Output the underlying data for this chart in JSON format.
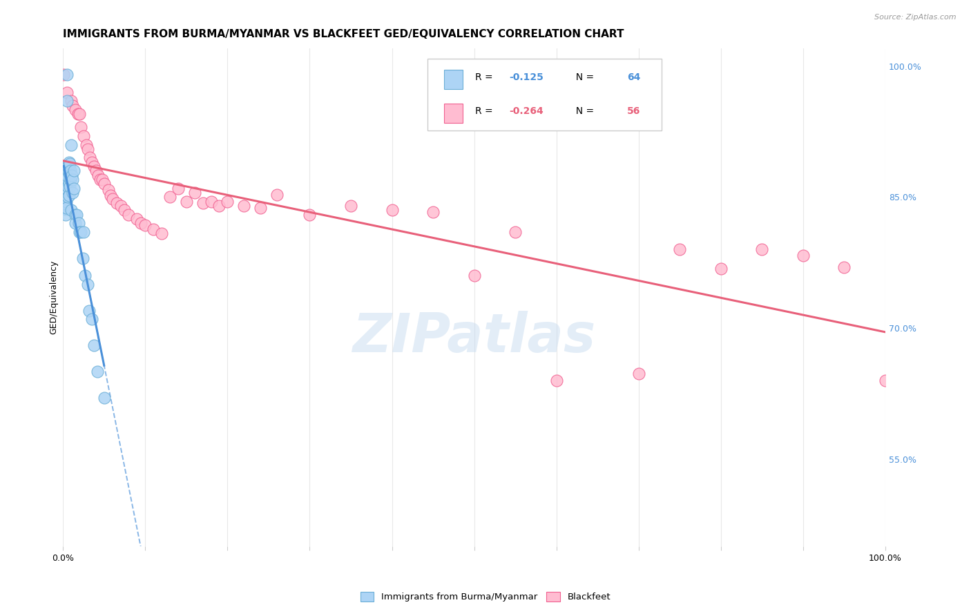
{
  "title": "IMMIGRANTS FROM BURMA/MYANMAR VS BLACKFEET GED/EQUIVALENCY CORRELATION CHART",
  "source": "Source: ZipAtlas.com",
  "ylabel": "GED/Equivalency",
  "ylabel_right_labels": [
    "100.0%",
    "85.0%",
    "70.0%",
    "55.0%"
  ],
  "ylabel_right_positions": [
    1.0,
    0.85,
    0.7,
    0.55
  ],
  "blue_color": "#ADD4F5",
  "pink_color": "#FFBCD1",
  "blue_edge_color": "#6AAED6",
  "pink_edge_color": "#F06090",
  "blue_line_color": "#4A90D9",
  "pink_line_color": "#E8607A",
  "watermark": "ZIPatlas",
  "blue_R": "-0.125",
  "blue_N": "64",
  "pink_R": "-0.264",
  "pink_N": "56",
  "blue_scatter_x": [
    0.001,
    0.001,
    0.001,
    0.001,
    0.001,
    0.002,
    0.002,
    0.002,
    0.002,
    0.002,
    0.002,
    0.002,
    0.003,
    0.003,
    0.003,
    0.003,
    0.003,
    0.003,
    0.003,
    0.004,
    0.004,
    0.004,
    0.004,
    0.004,
    0.005,
    0.005,
    0.005,
    0.005,
    0.005,
    0.006,
    0.006,
    0.006,
    0.006,
    0.007,
    0.007,
    0.007,
    0.007,
    0.008,
    0.008,
    0.008,
    0.009,
    0.009,
    0.01,
    0.01,
    0.011,
    0.012,
    0.012,
    0.013,
    0.013,
    0.015,
    0.015,
    0.017,
    0.019,
    0.02,
    0.022,
    0.024,
    0.025,
    0.027,
    0.03,
    0.032,
    0.035,
    0.038,
    0.042,
    0.05
  ],
  "blue_scatter_y": [
    0.87,
    0.86,
    0.855,
    0.85,
    0.845,
    0.87,
    0.865,
    0.86,
    0.855,
    0.85,
    0.845,
    0.84,
    0.875,
    0.865,
    0.855,
    0.848,
    0.842,
    0.836,
    0.83,
    0.87,
    0.86,
    0.852,
    0.845,
    0.838,
    0.99,
    0.96,
    0.88,
    0.865,
    0.855,
    0.885,
    0.873,
    0.862,
    0.85,
    0.89,
    0.878,
    0.865,
    0.852,
    0.888,
    0.876,
    0.862,
    0.88,
    0.87,
    0.91,
    0.835,
    0.875,
    0.87,
    0.855,
    0.88,
    0.86,
    0.83,
    0.82,
    0.83,
    0.82,
    0.81,
    0.81,
    0.78,
    0.81,
    0.76,
    0.75,
    0.72,
    0.71,
    0.68,
    0.65,
    0.62
  ],
  "pink_scatter_x": [
    0.001,
    0.005,
    0.01,
    0.012,
    0.015,
    0.018,
    0.02,
    0.022,
    0.025,
    0.028,
    0.03,
    0.033,
    0.035,
    0.038,
    0.04,
    0.043,
    0.045,
    0.048,
    0.05,
    0.055,
    0.058,
    0.06,
    0.065,
    0.07,
    0.075,
    0.08,
    0.09,
    0.095,
    0.1,
    0.11,
    0.12,
    0.13,
    0.14,
    0.15,
    0.16,
    0.17,
    0.18,
    0.19,
    0.2,
    0.22,
    0.24,
    0.26,
    0.3,
    0.35,
    0.4,
    0.45,
    0.5,
    0.55,
    0.6,
    0.7,
    0.75,
    0.8,
    0.85,
    0.9,
    0.95,
    1.0
  ],
  "pink_scatter_y": [
    0.99,
    0.97,
    0.96,
    0.955,
    0.95,
    0.945,
    0.945,
    0.93,
    0.92,
    0.91,
    0.905,
    0.895,
    0.89,
    0.885,
    0.88,
    0.875,
    0.87,
    0.87,
    0.865,
    0.858,
    0.852,
    0.848,
    0.843,
    0.84,
    0.835,
    0.83,
    0.825,
    0.82,
    0.818,
    0.813,
    0.808,
    0.85,
    0.86,
    0.845,
    0.855,
    0.843,
    0.845,
    0.84,
    0.845,
    0.84,
    0.838,
    0.853,
    0.83,
    0.84,
    0.835,
    0.833,
    0.76,
    0.81,
    0.64,
    0.648,
    0.79,
    0.768,
    0.79,
    0.783,
    0.77,
    0.64
  ],
  "xlim": [
    0.0,
    1.0
  ],
  "ylim": [
    0.45,
    1.02
  ],
  "grid_color": "#E8E8E8",
  "title_fontsize": 11,
  "axis_label_fontsize": 9
}
